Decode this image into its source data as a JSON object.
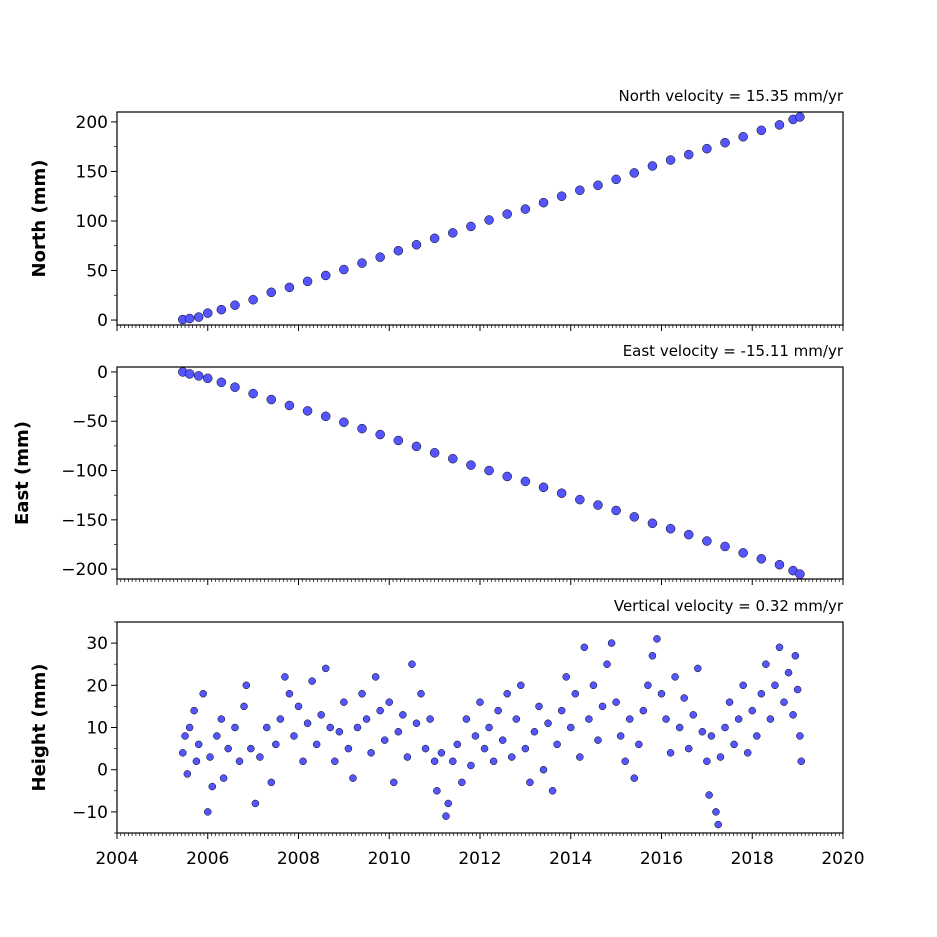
{
  "chart_data": [
    {
      "type": "scatter",
      "title": "North velocity = 15.35 mm/yr",
      "xlabel": "",
      "ylabel": "North (mm)",
      "xlim": [
        2004,
        2020
      ],
      "ylim": [
        -5,
        210
      ],
      "yticks": [
        0,
        50,
        100,
        150,
        200
      ],
      "ytick_labels": [
        "0",
        "50",
        "100",
        "150",
        "200"
      ],
      "grid": false,
      "marker_color": "#5555ff",
      "marker_edge": "#000000",
      "series": [
        {
          "points": [
            [
              2005.45,
              0.5
            ],
            [
              2005.6,
              1.5
            ],
            [
              2005.8,
              3.0
            ],
            [
              2006.0,
              7.0
            ],
            [
              2006.3,
              10.5
            ],
            [
              2006.6,
              15.0
            ],
            [
              2007.0,
              20.5
            ],
            [
              2007.4,
              28.0
            ],
            [
              2007.8,
              33.0
            ],
            [
              2008.2,
              39.0
            ],
            [
              2008.6,
              45.0
            ],
            [
              2009.0,
              51.0
            ],
            [
              2009.4,
              57.5
            ],
            [
              2009.8,
              63.5
            ],
            [
              2010.2,
              70.0
            ],
            [
              2010.6,
              76.0
            ],
            [
              2011.0,
              82.5
            ],
            [
              2011.4,
              88.0
            ],
            [
              2011.8,
              94.5
            ],
            [
              2012.2,
              101.0
            ],
            [
              2012.6,
              107.0
            ],
            [
              2013.0,
              112.0
            ],
            [
              2013.4,
              118.5
            ],
            [
              2013.8,
              125.0
            ],
            [
              2014.2,
              131.0
            ],
            [
              2014.6,
              136.0
            ],
            [
              2015.0,
              142.0
            ],
            [
              2015.4,
              148.5
            ],
            [
              2015.8,
              155.5
            ],
            [
              2016.2,
              161.5
            ],
            [
              2016.6,
              167.0
            ],
            [
              2017.0,
              173.0
            ],
            [
              2017.4,
              179.0
            ],
            [
              2017.8,
              185.0
            ],
            [
              2018.2,
              191.5
            ],
            [
              2018.6,
              197.0
            ],
            [
              2018.9,
              202.5
            ],
            [
              2019.05,
              205.0
            ]
          ]
        }
      ]
    },
    {
      "type": "scatter",
      "title": "East velocity = -15.11 mm/yr",
      "xlabel": "",
      "ylabel": "East (mm)",
      "xlim": [
        2004,
        2020
      ],
      "ylim": [
        -210,
        5
      ],
      "yticks": [
        0,
        -50,
        -100,
        -150,
        -200
      ],
      "ytick_labels": [
        "0",
        "−50",
        "−100",
        "−150",
        "−200"
      ],
      "grid": false,
      "marker_color": "#5555ff",
      "marker_edge": "#000000",
      "series": [
        {
          "points": [
            [
              2005.45,
              0.0
            ],
            [
              2005.6,
              -2.0
            ],
            [
              2005.8,
              -4.0
            ],
            [
              2006.0,
              -6.5
            ],
            [
              2006.3,
              -10.5
            ],
            [
              2006.6,
              -15.5
            ],
            [
              2007.0,
              -22.0
            ],
            [
              2007.4,
              -28.0
            ],
            [
              2007.8,
              -34.0
            ],
            [
              2008.2,
              -39.5
            ],
            [
              2008.6,
              -45.0
            ],
            [
              2009.0,
              -51.0
            ],
            [
              2009.4,
              -57.5
            ],
            [
              2009.8,
              -63.5
            ],
            [
              2010.2,
              -69.5
            ],
            [
              2010.6,
              -75.5
            ],
            [
              2011.0,
              -82.0
            ],
            [
              2011.4,
              -88.0
            ],
            [
              2011.8,
              -94.5
            ],
            [
              2012.2,
              -100.0
            ],
            [
              2012.6,
              -106.0
            ],
            [
              2013.0,
              -111.0
            ],
            [
              2013.4,
              -117.0
            ],
            [
              2013.8,
              -123.0
            ],
            [
              2014.2,
              -129.5
            ],
            [
              2014.6,
              -135.0
            ],
            [
              2015.0,
              -140.5
            ],
            [
              2015.4,
              -147.0
            ],
            [
              2015.8,
              -153.5
            ],
            [
              2016.2,
              -159.0
            ],
            [
              2016.6,
              -165.0
            ],
            [
              2017.0,
              -171.5
            ],
            [
              2017.4,
              -177.0
            ],
            [
              2017.8,
              -183.5
            ],
            [
              2018.2,
              -189.5
            ],
            [
              2018.6,
              -195.5
            ],
            [
              2018.9,
              -201.5
            ],
            [
              2019.05,
              -205.0
            ]
          ]
        }
      ]
    },
    {
      "type": "scatter",
      "title": "Vertical velocity = 0.32 mm/yr",
      "xlabel": "",
      "ylabel": "Height (mm)",
      "xlim": [
        2004,
        2020
      ],
      "ylim": [
        -15,
        35
      ],
      "yticks": [
        30,
        20,
        10,
        0,
        -10
      ],
      "ytick_labels": [
        "30",
        "20",
        "10",
        "0",
        "−10"
      ],
      "xticks": [
        2004,
        2006,
        2008,
        2010,
        2012,
        2014,
        2016,
        2018,
        2020
      ],
      "xtick_labels": [
        "2004",
        "2006",
        "2008",
        "2010",
        "2012",
        "2014",
        "2016",
        "2018",
        "2020"
      ],
      "grid": false,
      "marker_color": "#5555ff",
      "marker_edge": "#000000",
      "series": [
        {
          "points": [
            [
              2005.45,
              4
            ],
            [
              2005.5,
              8
            ],
            [
              2005.55,
              -1
            ],
            [
              2005.6,
              10
            ],
            [
              2005.7,
              14
            ],
            [
              2005.75,
              2
            ],
            [
              2005.8,
              6
            ],
            [
              2005.9,
              18
            ],
            [
              2006.0,
              -10
            ],
            [
              2006.05,
              3
            ],
            [
              2006.1,
              -4
            ],
            [
              2006.2,
              8
            ],
            [
              2006.3,
              12
            ],
            [
              2006.35,
              -2
            ],
            [
              2006.45,
              5
            ],
            [
              2006.6,
              10
            ],
            [
              2006.7,
              2
            ],
            [
              2006.8,
              15
            ],
            [
              2006.85,
              20
            ],
            [
              2006.95,
              5
            ],
            [
              2007.05,
              -8
            ],
            [
              2007.15,
              3
            ],
            [
              2007.3,
              10
            ],
            [
              2007.4,
              -3
            ],
            [
              2007.5,
              6
            ],
            [
              2007.6,
              12
            ],
            [
              2007.7,
              22
            ],
            [
              2007.8,
              18
            ],
            [
              2007.9,
              8
            ],
            [
              2008.0,
              15
            ],
            [
              2008.1,
              2
            ],
            [
              2008.2,
              11
            ],
            [
              2008.3,
              21
            ],
            [
              2008.4,
              6
            ],
            [
              2008.5,
              13
            ],
            [
              2008.6,
              24
            ],
            [
              2008.7,
              10
            ],
            [
              2008.8,
              2
            ],
            [
              2008.9,
              9
            ],
            [
              2009.0,
              16
            ],
            [
              2009.1,
              5
            ],
            [
              2009.2,
              -2
            ],
            [
              2009.3,
              10
            ],
            [
              2009.4,
              18
            ],
            [
              2009.5,
              12
            ],
            [
              2009.6,
              4
            ],
            [
              2009.7,
              22
            ],
            [
              2009.8,
              14
            ],
            [
              2009.9,
              7
            ],
            [
              2010.0,
              16
            ],
            [
              2010.1,
              -3
            ],
            [
              2010.2,
              9
            ],
            [
              2010.3,
              13
            ],
            [
              2010.4,
              3
            ],
            [
              2010.5,
              25
            ],
            [
              2010.6,
              11
            ],
            [
              2010.7,
              18
            ],
            [
              2010.8,
              5
            ],
            [
              2010.9,
              12
            ],
            [
              2011.0,
              2
            ],
            [
              2011.05,
              -5
            ],
            [
              2011.15,
              4
            ],
            [
              2011.25,
              -11
            ],
            [
              2011.3,
              -8
            ],
            [
              2011.4,
              2
            ],
            [
              2011.5,
              6
            ],
            [
              2011.6,
              -3
            ],
            [
              2011.7,
              12
            ],
            [
              2011.8,
              1
            ],
            [
              2011.9,
              8
            ],
            [
              2012.0,
              16
            ],
            [
              2012.1,
              5
            ],
            [
              2012.2,
              10
            ],
            [
              2012.3,
              2
            ],
            [
              2012.4,
              14
            ],
            [
              2012.5,
              7
            ],
            [
              2012.6,
              18
            ],
            [
              2012.7,
              3
            ],
            [
              2012.8,
              12
            ],
            [
              2012.9,
              20
            ],
            [
              2013.0,
              5
            ],
            [
              2013.1,
              -3
            ],
            [
              2013.2,
              9
            ],
            [
              2013.3,
              15
            ],
            [
              2013.4,
              0
            ],
            [
              2013.5,
              11
            ],
            [
              2013.6,
              -5
            ],
            [
              2013.7,
              6
            ],
            [
              2013.8,
              14
            ],
            [
              2013.9,
              22
            ],
            [
              2014.0,
              10
            ],
            [
              2014.1,
              18
            ],
            [
              2014.2,
              3
            ],
            [
              2014.3,
              29
            ],
            [
              2014.4,
              12
            ],
            [
              2014.5,
              20
            ],
            [
              2014.6,
              7
            ],
            [
              2014.7,
              15
            ],
            [
              2014.8,
              25
            ],
            [
              2014.9,
              30
            ],
            [
              2015.0,
              16
            ],
            [
              2015.1,
              8
            ],
            [
              2015.2,
              2
            ],
            [
              2015.3,
              12
            ],
            [
              2015.4,
              -2
            ],
            [
              2015.5,
              6
            ],
            [
              2015.6,
              14
            ],
            [
              2015.7,
              20
            ],
            [
              2015.8,
              27
            ],
            [
              2015.9,
              31
            ],
            [
              2016.0,
              18
            ],
            [
              2016.1,
              12
            ],
            [
              2016.2,
              4
            ],
            [
              2016.3,
              22
            ],
            [
              2016.4,
              10
            ],
            [
              2016.5,
              17
            ],
            [
              2016.6,
              5
            ],
            [
              2016.7,
              13
            ],
            [
              2016.8,
              24
            ],
            [
              2016.9,
              9
            ],
            [
              2017.0,
              2
            ],
            [
              2017.05,
              -6
            ],
            [
              2017.1,
              8
            ],
            [
              2017.2,
              -10
            ],
            [
              2017.25,
              -13
            ],
            [
              2017.3,
              3
            ],
            [
              2017.4,
              10
            ],
            [
              2017.5,
              16
            ],
            [
              2017.6,
              6
            ],
            [
              2017.7,
              12
            ],
            [
              2017.8,
              20
            ],
            [
              2017.9,
              4
            ],
            [
              2018.0,
              14
            ],
            [
              2018.1,
              8
            ],
            [
              2018.2,
              18
            ],
            [
              2018.3,
              25
            ],
            [
              2018.4,
              12
            ],
            [
              2018.5,
              20
            ],
            [
              2018.6,
              29
            ],
            [
              2018.7,
              16
            ],
            [
              2018.8,
              23
            ],
            [
              2018.9,
              13
            ],
            [
              2018.95,
              27
            ],
            [
              2019.0,
              19
            ],
            [
              2019.05,
              8
            ],
            [
              2019.08,
              2
            ]
          ]
        }
      ]
    }
  ]
}
